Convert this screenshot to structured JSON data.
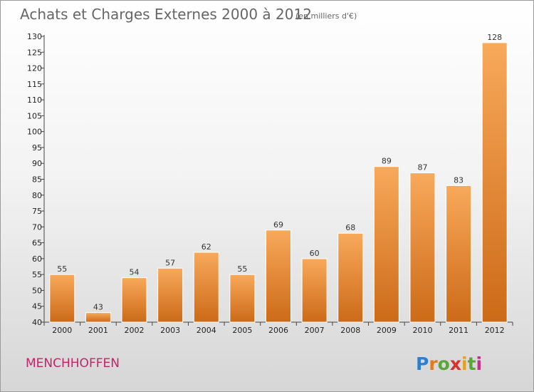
{
  "title": "Achats et Charges Externes 2000 à 2012",
  "unit_note": "(en milliers d'€)",
  "commune": "MENCHHOFFEN",
  "brand": {
    "letters": [
      "P",
      "r",
      "o",
      "x",
      "i",
      "t",
      "i"
    ],
    "colors": [
      "#2f7fd1",
      "#e3791a",
      "#5aa63b",
      "#d8322b",
      "#e3a21a",
      "#5aa63b",
      "#c52f8a"
    ]
  },
  "colors": {
    "bar_light": "#f8a95a",
    "bar_dark": "#cc6a18",
    "axis": "#444444",
    "commune": "#c0256a"
  },
  "chart_data": {
    "type": "bar",
    "title": "Achats et Charges Externes 2000 à 2012",
    "subtitle": "(en milliers d'€)",
    "categories": [
      "2000",
      "2001",
      "2002",
      "2003",
      "2004",
      "2005",
      "2006",
      "2007",
      "2008",
      "2009",
      "2010",
      "2011",
      "2012"
    ],
    "values": [
      55,
      43,
      54,
      57,
      62,
      55,
      69,
      60,
      68,
      89,
      87,
      83,
      128
    ],
    "data_labels": [
      "55",
      "43",
      "54",
      "57",
      "62",
      "55",
      "69",
      "60",
      "68",
      "89",
      "87",
      "83",
      "128"
    ],
    "ylim": [
      40,
      130
    ],
    "yticks": [
      40,
      45,
      50,
      55,
      60,
      65,
      70,
      75,
      80,
      85,
      90,
      95,
      100,
      105,
      110,
      115,
      120,
      125,
      130
    ],
    "xlabel": "",
    "ylabel": "",
    "grid": false,
    "legend": "none"
  }
}
